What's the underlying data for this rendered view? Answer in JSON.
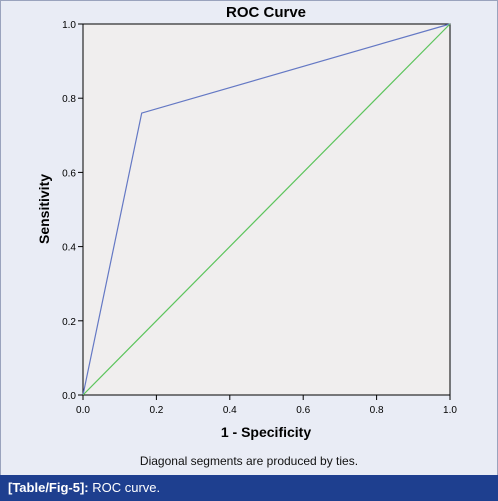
{
  "chart_data": {
    "type": "line",
    "title": "ROC Curve",
    "xlabel": "1 - Specificity",
    "ylabel": "Sensitivity",
    "xlim": [
      0,
      1
    ],
    "ylim": [
      0,
      1
    ],
    "x_ticks": [
      "0.0",
      "0.2",
      "0.4",
      "0.6",
      "0.8",
      "1.0"
    ],
    "y_ticks": [
      "0.0",
      "0.2",
      "0.4",
      "0.6",
      "0.8",
      "1.0"
    ],
    "grid": false,
    "series": [
      {
        "color": "#6478c4",
        "x": [
          0,
          0.16,
          1
        ],
        "y": [
          0,
          0.76,
          1
        ]
      },
      {
        "color": "#5cc45c",
        "x": [
          0,
          1
        ],
        "y": [
          0,
          1
        ]
      }
    ],
    "plot_background": "#f0eeee",
    "footnote": "Diagonal segments are produced by ties."
  },
  "caption": {
    "label": "[Table/Fig-5]:",
    "text": " ROC curve."
  }
}
